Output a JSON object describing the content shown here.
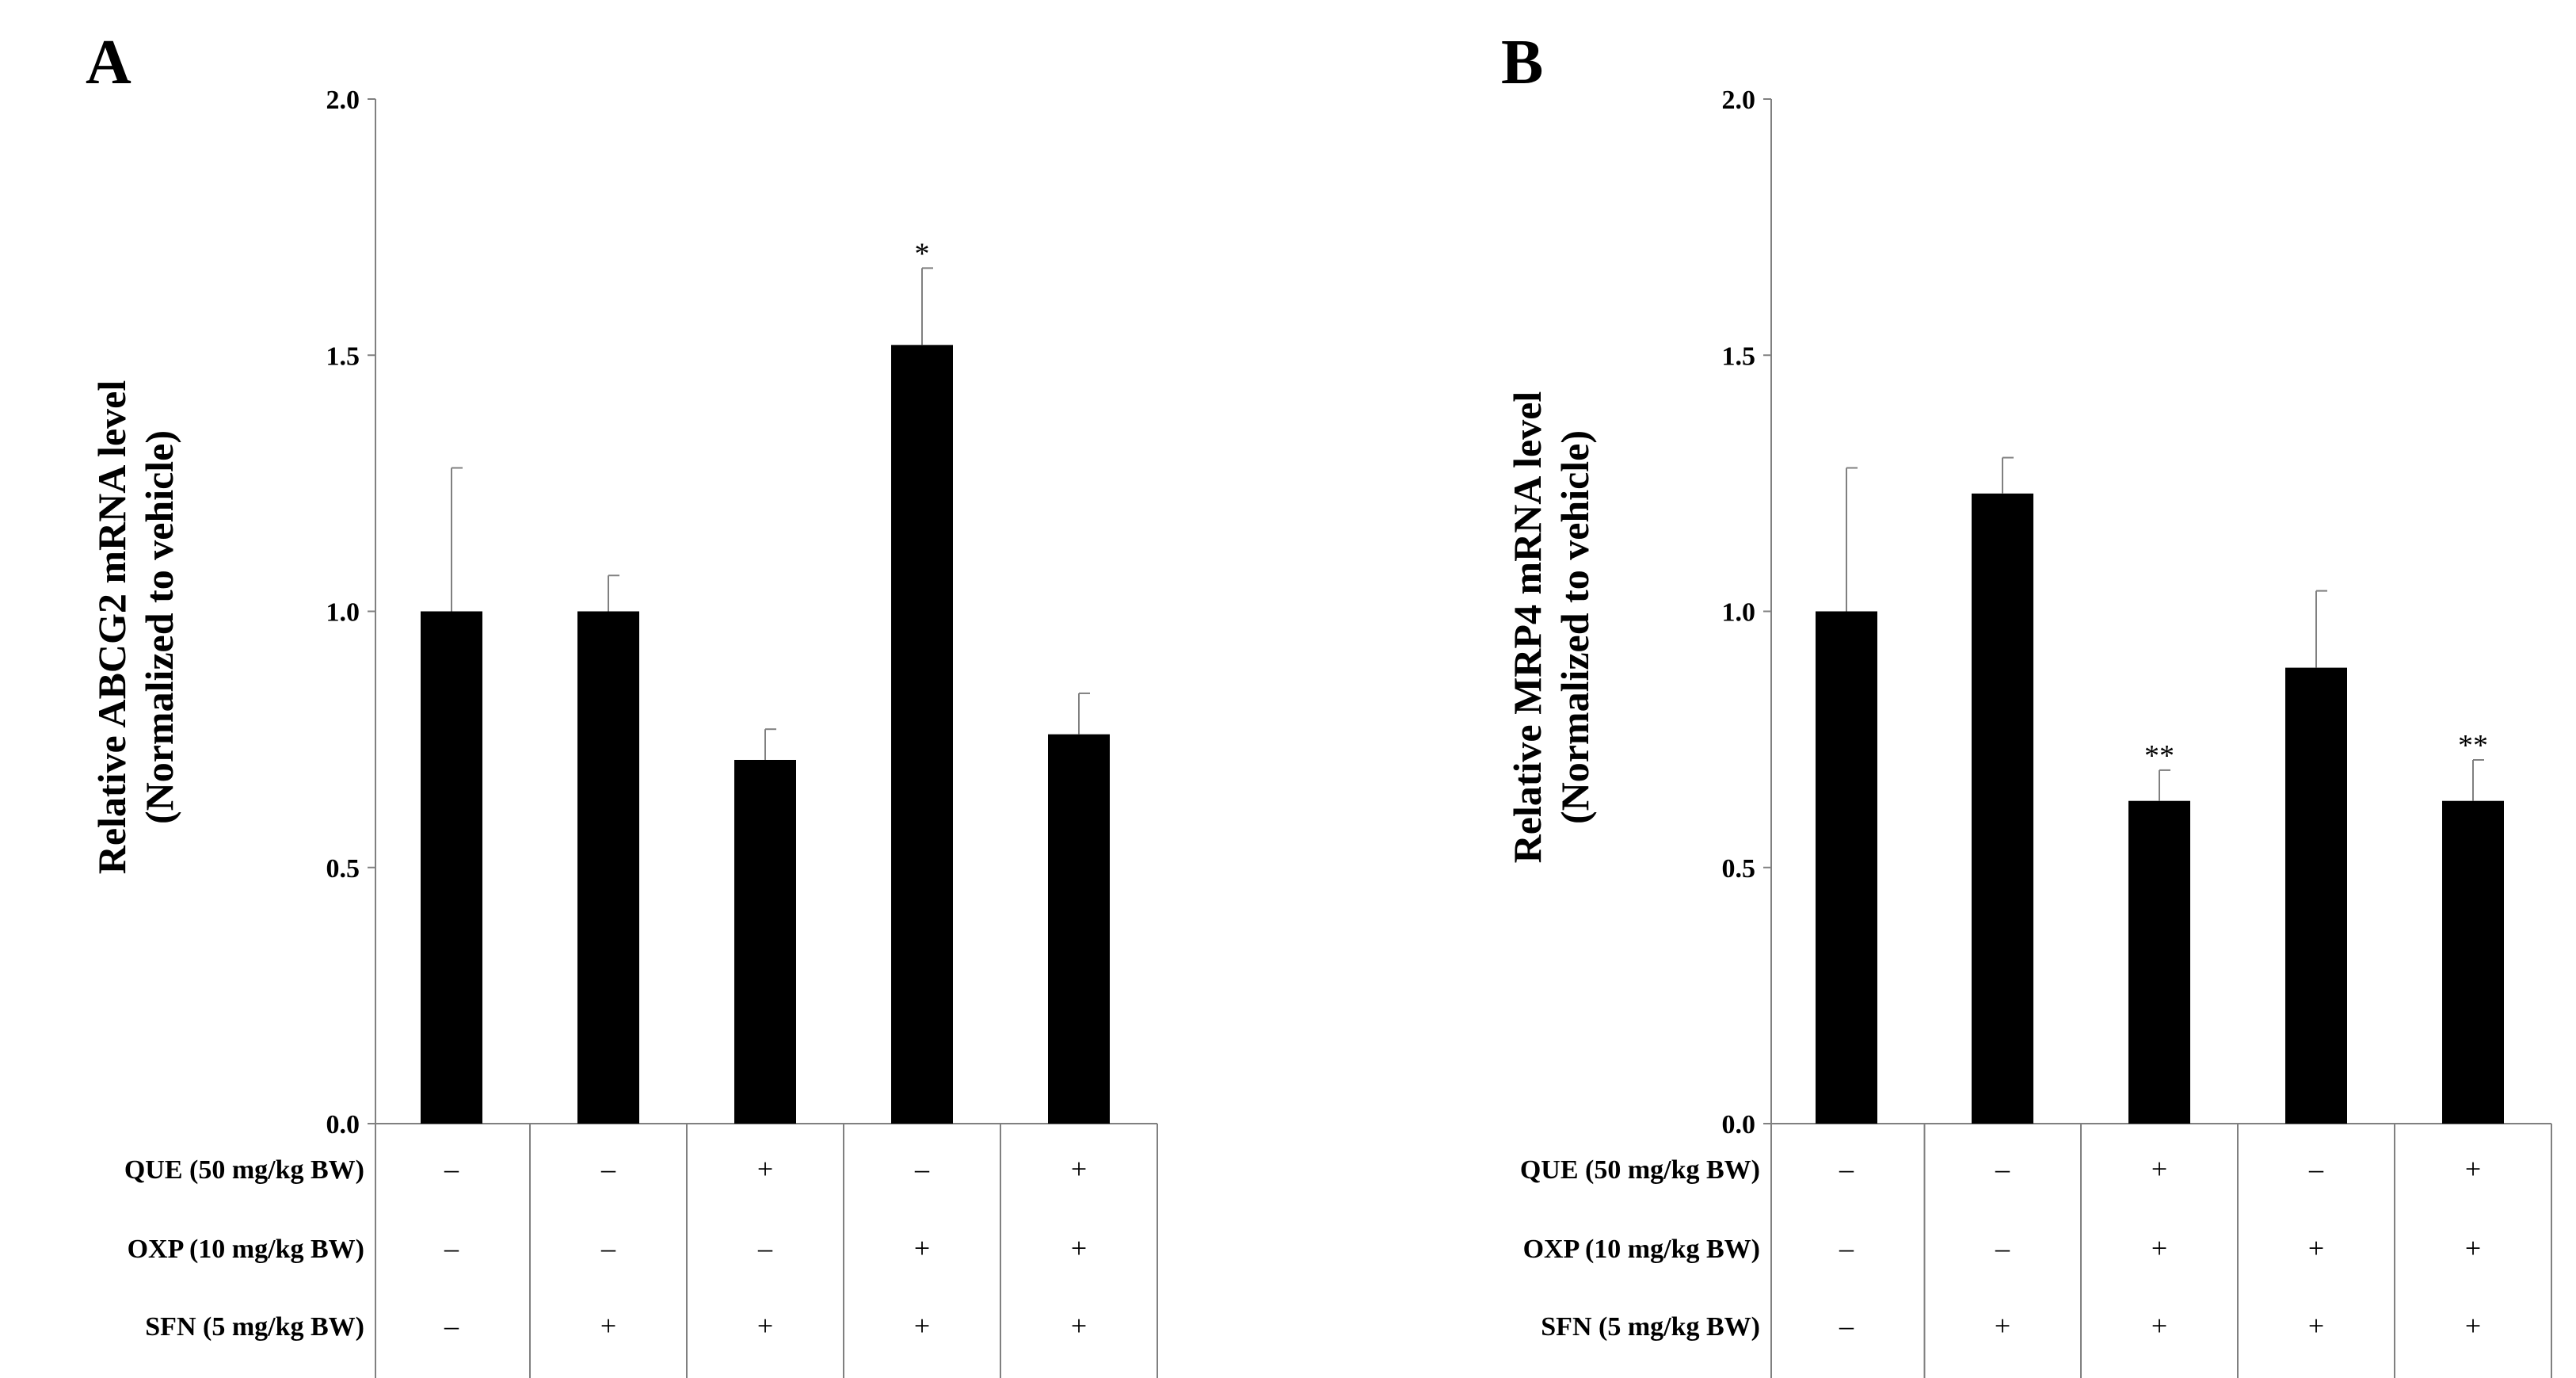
{
  "chart_data": [
    {
      "type": "bar",
      "panel_label": "A",
      "ylabel_line1": "Relative ABCG2 mRNA level",
      "ylabel_line2": "(Normalized to vehicle)",
      "ylim": [
        0,
        2.0
      ],
      "yticks": [
        "0.0",
        "0.5",
        "1.0",
        "1.5",
        "2.0"
      ],
      "values": [
        1.0,
        1.0,
        0.71,
        1.52,
        0.76
      ],
      "errors": [
        0.28,
        0.07,
        0.06,
        0.15,
        0.08
      ],
      "significance": [
        "",
        "",
        "",
        "*",
        ""
      ],
      "treatments": [
        {
          "label": "QUE (50 mg/kg BW)",
          "signs": [
            "–",
            "–",
            "+",
            "–",
            "+"
          ]
        },
        {
          "label": "OXP (10 mg/kg BW)",
          "signs": [
            "–",
            "–",
            "–",
            "+",
            "+"
          ]
        },
        {
          "label": "SFN (5 mg/kg BW)",
          "signs": [
            "–",
            "+",
            "+",
            "+",
            "+"
          ]
        }
      ]
    },
    {
      "type": "bar",
      "panel_label": "B",
      "ylabel_line1": "Relative MRP4 mRNA level",
      "ylabel_line2": "(Normalized to vehicle)",
      "ylim": [
        0,
        2.0
      ],
      "yticks": [
        "0.0",
        "0.5",
        "1.0",
        "1.5",
        "2.0"
      ],
      "values": [
        1.0,
        1.23,
        0.63,
        0.89,
        0.63
      ],
      "errors": [
        0.28,
        0.07,
        0.06,
        0.15,
        0.08
      ],
      "significance": [
        "",
        "",
        "**",
        "",
        "**"
      ],
      "treatments": [
        {
          "label": "QUE (50 mg/kg BW)",
          "signs": [
            "–",
            "–",
            "+",
            "–",
            "+"
          ]
        },
        {
          "label": "OXP (10 mg/kg BW)",
          "signs": [
            "–",
            "–",
            "+",
            "+",
            "+"
          ]
        },
        {
          "label": "SFN (5 mg/kg BW)",
          "signs": [
            "–",
            "+",
            "+",
            "+",
            "+"
          ]
        }
      ]
    }
  ],
  "colors": {
    "bar": "#000000",
    "axis": "#808080",
    "background": "#ffffff"
  }
}
